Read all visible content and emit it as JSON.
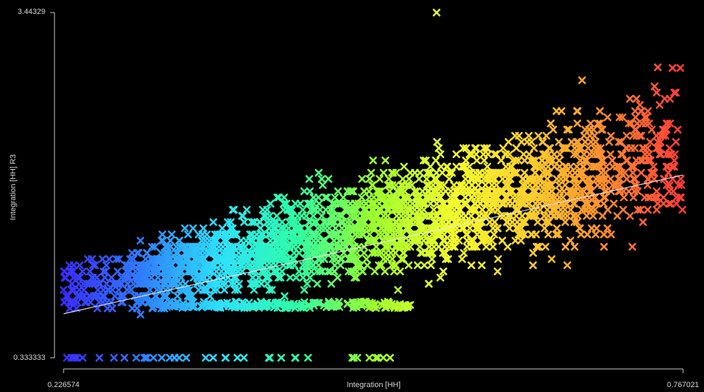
{
  "chart_data": {
    "type": "scatter",
    "xlabel": "Integration [HH]",
    "ylabel": "Integration [HH] R3",
    "xlim": [
      0.226574,
      0.767021
    ],
    "ylim": [
      0.333333,
      3.44329
    ],
    "x_tick_labels": [
      "0.226574",
      "0.767021"
    ],
    "y_tick_labels": [
      "0.333333",
      "3.44329"
    ],
    "marker": "x",
    "color_by": "x",
    "colormap": [
      "#3a2cff",
      "#2f7dff",
      "#2ee0ff",
      "#2effa6",
      "#9cff2e",
      "#f2ff2e",
      "#ffd02e",
      "#ff8c2e",
      "#ff3a3a"
    ],
    "grid": false,
    "legend": "none",
    "trend_line": {
      "x": [
        0.226574,
        0.767021
      ],
      "y": [
        0.73,
        1.98
      ]
    },
    "point_count_estimate": 2600,
    "clusters": [
      {
        "x_range": [
          0.226,
          0.29
        ],
        "y_range": [
          0.333,
          1.5
        ],
        "density": "sparse"
      },
      {
        "x_range": [
          0.29,
          0.45
        ],
        "y_range": [
          0.8,
          1.8
        ],
        "density": "dense"
      },
      {
        "x_range": [
          0.45,
          0.6
        ],
        "y_range": [
          0.75,
          2.3
        ],
        "density": "very dense"
      },
      {
        "x_range": [
          0.6,
          0.7
        ],
        "y_range": [
          1.1,
          2.5
        ],
        "density": "dense"
      },
      {
        "x_range": [
          0.7,
          0.767
        ],
        "y_range": [
          1.3,
          2.8
        ],
        "density": "moderate"
      }
    ],
    "baseline_row": {
      "y": 0.333333,
      "x_range": [
        0.226574,
        0.53
      ]
    },
    "outliers": [
      {
        "x": 0.552,
        "y": 3.44329
      },
      {
        "x": 0.745,
        "y": 2.95
      }
    ]
  }
}
